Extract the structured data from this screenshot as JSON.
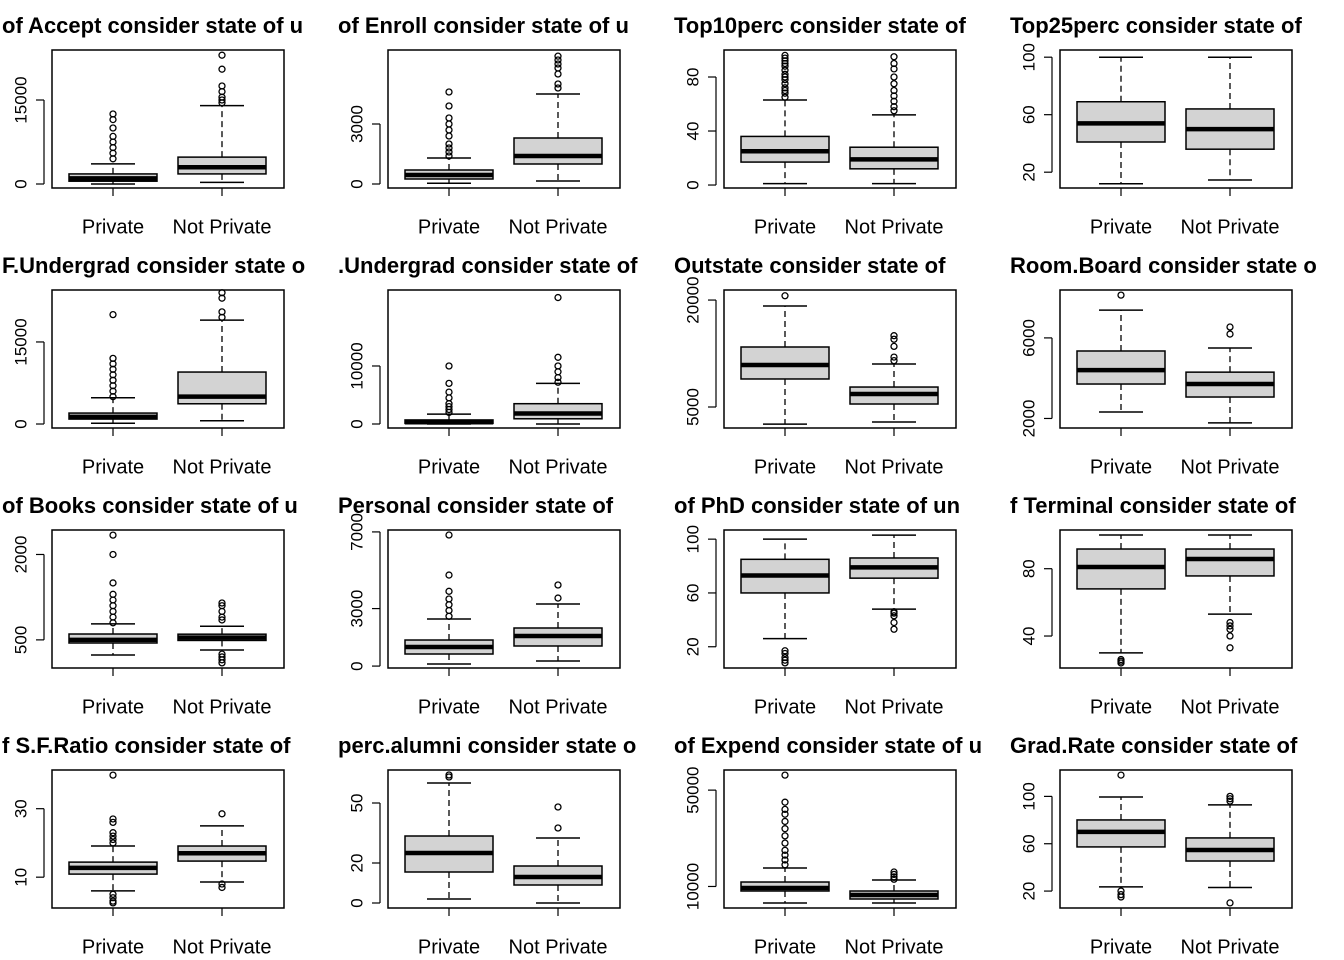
{
  "chart_data": [
    {
      "type": "boxplot",
      "title": "of Accept consider state of u",
      "categories": [
        "Private",
        "Not Private"
      ],
      "color": "#d3d3d3",
      "ylim": [
        -714,
        23930
      ],
      "yticks": [
        0,
        15000
      ],
      "boxes": [
        {
          "whisker_low": 0,
          "q1": 500,
          "median": 1000,
          "q3": 1800,
          "whisker_high": 3600,
          "outliers": [
            4500,
            5500,
            6500,
            7500,
            8500,
            10000,
            11500,
            12500
          ]
        },
        {
          "whisker_low": 300,
          "q1": 1800,
          "median": 3000,
          "q3": 4800,
          "whisker_high": 14000,
          "outliers": [
            14500,
            15000,
            15500,
            16500,
            17500,
            20500,
            23000
          ]
        }
      ]
    },
    {
      "type": "boxplot",
      "title": "of Enroll consider state of u",
      "categories": [
        "Private",
        "Not Private"
      ],
      "color": "#d3d3d3",
      "ylim": [
        -200,
        6700
      ],
      "yticks": [
        0,
        3000
      ],
      "boxes": [
        {
          "whisker_low": 35,
          "q1": 250,
          "median": 450,
          "q3": 700,
          "whisker_high": 1300,
          "outliers": [
            1400,
            1600,
            1800,
            2000,
            2400,
            2700,
            3000,
            3300,
            3900,
            4600
          ]
        },
        {
          "whisker_low": 150,
          "q1": 1000,
          "median": 1400,
          "q3": 2300,
          "whisker_high": 4500,
          "outliers": [
            4800,
            5000,
            5500,
            5800,
            6000,
            6200,
            6392
          ]
        }
      ]
    },
    {
      "type": "boxplot",
      "title": "Top10perc consider state of",
      "categories": [
        "Private",
        "Not Private"
      ],
      "color": "#d3d3d3",
      "ylim": [
        -2.2,
        100
      ],
      "yticks": [
        0,
        40,
        80
      ],
      "boxes": [
        {
          "whisker_low": 1,
          "q1": 17,
          "median": 25,
          "q3": 36,
          "whisker_high": 63,
          "outliers": [
            65,
            68,
            70,
            72,
            75,
            78,
            80,
            82,
            85,
            88,
            90,
            92,
            94,
            96
          ]
        },
        {
          "whisker_low": 1,
          "q1": 12,
          "median": 19,
          "q3": 28,
          "whisker_high": 52,
          "outliers": [
            55,
            58,
            62,
            66,
            70,
            75,
            80,
            86,
            90,
            95
          ]
        }
      ]
    },
    {
      "type": "boxplot",
      "title": "Top25perc consider state of",
      "categories": [
        "Private",
        "Not Private"
      ],
      "color": "#d3d3d3",
      "ylim": [
        9,
        105
      ],
      "yticks": [
        20,
        60,
        100
      ],
      "boxes": [
        {
          "whisker_low": 12,
          "q1": 41,
          "median": 54,
          "q3": 69,
          "whisker_high": 100,
          "outliers": []
        },
        {
          "whisker_low": 14.6,
          "q1": 36,
          "median": 50,
          "q3": 64,
          "whisker_high": 100,
          "outliers": []
        }
      ]
    },
    {
      "type": "boxplot",
      "title": "F.Undergrad consider state o",
      "categories": [
        "Private",
        "Not Private"
      ],
      "color": "#d3d3d3",
      "ylim": [
        -730,
        24500
      ],
      "yticks": [
        0,
        15000
      ],
      "boxes": [
        {
          "whisker_low": 140,
          "q1": 900,
          "median": 1300,
          "q3": 2000,
          "whisker_high": 4800,
          "outliers": [
            5000,
            6000,
            7000,
            8000,
            9000,
            10000,
            11000,
            12000,
            20000
          ]
        },
        {
          "whisker_low": 600,
          "q1": 3700,
          "median": 5000,
          "q3": 9500,
          "whisker_high": 19000,
          "outliers": [
            19500,
            20500,
            23000,
            24000
          ]
        }
      ]
    },
    {
      "type": "boxplot",
      "title": ".Undergrad consider state of",
      "categories": [
        "Private",
        "Not Private"
      ],
      "color": "#d3d3d3",
      "ylim": [
        -690,
        23100
      ],
      "yticks": [
        0,
        10000
      ],
      "boxes": [
        {
          "whisker_low": 0,
          "q1": 100,
          "median": 300,
          "q3": 700,
          "whisker_high": 1700,
          "outliers": [
            2000,
            2500,
            3000,
            3500,
            4500,
            5500,
            7000,
            10000
          ]
        },
        {
          "whisker_low": 0,
          "q1": 900,
          "median": 1800,
          "q3": 3500,
          "whisker_high": 7000,
          "outliers": [
            7200,
            8000,
            9000,
            10000,
            11500,
            21800
          ]
        }
      ]
    },
    {
      "type": "boxplot",
      "title": "Outstate consider state of",
      "categories": [
        "Private",
        "Not Private"
      ],
      "color": "#d3d3d3",
      "ylim": [
        2055,
        21410
      ],
      "yticks": [
        5000,
        20000
      ],
      "boxes": [
        {
          "whisker_low": 2600,
          "q1": 8930,
          "median": 10890,
          "q3": 13415,
          "whisker_high": 19160,
          "outliers": [
            20600
          ]
        },
        {
          "whisker_low": 2900,
          "q1": 5420,
          "median": 6820,
          "q3": 7800,
          "whisker_high": 11030,
          "outliers": [
            11500,
            12000,
            13500,
            14500,
            15000
          ]
        }
      ]
    },
    {
      "type": "boxplot",
      "title": "Room.Board consider state o",
      "categories": [
        "Private",
        "Not Private"
      ],
      "color": "#d3d3d3",
      "ylim": [
        1527,
        8378
      ],
      "yticks": [
        2000,
        6000
      ],
      "boxes": [
        {
          "whisker_low": 2320,
          "q1": 3710,
          "median": 4400,
          "q3": 5350,
          "whisker_high": 7380,
          "outliers": [
            8124
          ]
        },
        {
          "whisker_low": 1780,
          "q1": 3065,
          "median": 3710,
          "q3": 4300,
          "whisker_high": 5500,
          "outliers": [
            6190,
            6540
          ]
        }
      ]
    },
    {
      "type": "boxplot",
      "title": "of Books consider state of u",
      "categories": [
        "Private",
        "Not Private"
      ],
      "color": "#d3d3d3",
      "ylim": [
        6,
        2430
      ],
      "yticks": [
        500,
        2000
      ],
      "boxes": [
        {
          "whisker_low": 234,
          "q1": 445,
          "median": 500,
          "q3": 603,
          "whisker_high": 780,
          "outliers": [
            800,
            900,
            1000,
            1100,
            1200,
            1300,
            1500,
            2000,
            2340
          ]
        },
        {
          "whisker_low": 322,
          "q1": 490,
          "median": 540,
          "q3": 600,
          "whisker_high": 740,
          "outliers": [
            96,
            150,
            200,
            250,
            850,
            900,
            1000,
            1100,
            1148
          ]
        }
      ]
    },
    {
      "type": "boxplot",
      "title": "Personal consider state of",
      "categories": [
        "Private",
        "Not Private"
      ],
      "color": "#d3d3d3",
      "ylim": [
        -100,
        7100
      ],
      "yticks": [
        0,
        3000,
        7000
      ],
      "boxes": [
        {
          "whisker_low": 108,
          "q1": 630,
          "median": 995,
          "q3": 1360,
          "whisker_high": 2455,
          "outliers": [
            2600,
            2900,
            3200,
            3500,
            3900,
            4750,
            6838
          ]
        },
        {
          "whisker_low": 265,
          "q1": 1048,
          "median": 1570,
          "q3": 1987,
          "whisker_high": 3240,
          "outliers": [
            3550,
            4230
          ]
        }
      ]
    },
    {
      "type": "boxplot",
      "title": "of PhD consider state of un",
      "categories": [
        "Private",
        "Not Private"
      ],
      "color": "#d3d3d3",
      "ylim": [
        4.2,
        106.8
      ],
      "yticks": [
        20,
        60,
        100
      ],
      "boxes": [
        {
          "whisker_low": 26,
          "q1": 60,
          "median": 73,
          "q3": 85,
          "whisker_high": 100,
          "outliers": [
            8,
            10,
            12,
            15,
            17
          ]
        },
        {
          "whisker_low": 48,
          "q1": 71,
          "median": 79,
          "q3": 86,
          "whisker_high": 103,
          "outliers": [
            33,
            38,
            43,
            45,
            46
          ]
        }
      ]
    },
    {
      "type": "boxplot",
      "title": "f Terminal consider state of",
      "categories": [
        "Private",
        "Not Private"
      ],
      "color": "#d3d3d3",
      "ylim": [
        21,
        103
      ],
      "yticks": [
        40,
        80
      ],
      "boxes": [
        {
          "whisker_low": 30,
          "q1": 68,
          "median": 81,
          "q3": 91.7,
          "whisker_high": 100,
          "outliers": [
            24,
            25,
            26
          ]
        },
        {
          "whisker_low": 53,
          "q1": 75.7,
          "median": 85.8,
          "q3": 91.7,
          "whisker_high": 100,
          "outliers": [
            33,
            40,
            44,
            46,
            48
          ]
        }
      ]
    },
    {
      "type": "boxplot",
      "title": "f S.F.Ratio consider state of",
      "categories": [
        "Private",
        "Not Private"
      ],
      "color": "#d3d3d3",
      "ylim": [
        1,
        41.3
      ],
      "yticks": [
        10,
        30
      ],
      "boxes": [
        {
          "whisker_low": 6,
          "q1": 10.9,
          "median": 12.7,
          "q3": 14.4,
          "whisker_high": 19.1,
          "outliers": [
            2.5,
            3,
            4,
            5,
            20,
            21,
            22,
            23,
            26,
            27,
            39.8
          ]
        },
        {
          "whisker_low": 8.6,
          "q1": 14.7,
          "median": 17,
          "q3": 19.1,
          "whisker_high": 25,
          "outliers": [
            7,
            8,
            28.5
          ]
        }
      ]
    },
    {
      "type": "boxplot",
      "title": "perc.alumni consider state o",
      "categories": [
        "Private",
        "Not Private"
      ],
      "color": "#d3d3d3",
      "ylim": [
        -2.5,
        66.5
      ],
      "yticks": [
        0,
        20,
        50
      ],
      "boxes": [
        {
          "whisker_low": 2,
          "q1": 15.5,
          "median": 25,
          "q3": 33.5,
          "whisker_high": 60,
          "outliers": [
            63,
            64
          ]
        },
        {
          "whisker_low": 0,
          "q1": 9,
          "median": 13,
          "q3": 18.5,
          "whisker_high": 32.5,
          "outliers": [
            37.5,
            48
          ]
        }
      ]
    },
    {
      "type": "boxplot",
      "title": "of Expend consider state of u",
      "categories": [
        "Private",
        "Not Private"
      ],
      "color": "#d3d3d3",
      "ylim": [
        1064,
        58355
      ],
      "yticks": [
        10000,
        50000
      ],
      "boxes": [
        {
          "whisker_low": 3140,
          "q1": 8120,
          "median": 9360,
          "q3": 11850,
          "whisker_high": 17660,
          "outliers": [
            19000,
            21000,
            23000,
            25000,
            28000,
            31000,
            34000,
            37000,
            40000,
            42000,
            45000,
            56233
          ]
        },
        {
          "whisker_low": 3140,
          "q1": 4800,
          "median": 6460,
          "q3": 8120,
          "whisker_high": 12680,
          "outliers": [
            13000,
            14000,
            15000,
            16000
          ]
        }
      ]
    },
    {
      "type": "boxplot",
      "title": "Grad.Rate consider state of",
      "categories": [
        "Private",
        "Not Private"
      ],
      "color": "#d3d3d3",
      "ylim": [
        5.7,
        122.3
      ],
      "yticks": [
        20,
        60,
        100
      ],
      "boxes": [
        {
          "whisker_low": 23.5,
          "q1": 57.3,
          "median": 70,
          "q3": 80.1,
          "whisker_high": 99.5,
          "outliers": [
            15,
            17,
            20,
            118
          ]
        },
        {
          "whisker_low": 23,
          "q1": 45.4,
          "median": 54.7,
          "q3": 64.9,
          "whisker_high": 92.8,
          "outliers": [
            10,
            96,
            98,
            100
          ]
        }
      ]
    }
  ]
}
